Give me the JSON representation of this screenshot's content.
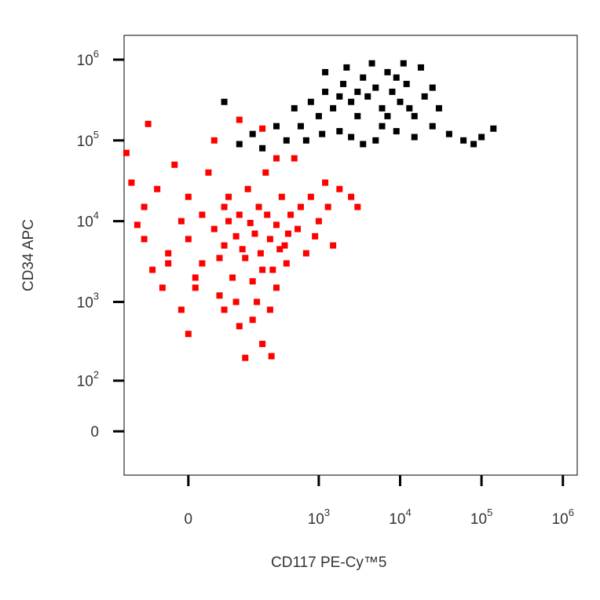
{
  "chart_data": {
    "type": "scatter",
    "scale": "biexponential",
    "xlabel": "CD117  PE-Cy™5",
    "ylabel": "CD34 APC",
    "xlim": [
      -150,
      1500000
    ],
    "ylim": [
      -80,
      2000000
    ],
    "xticks": [
      0,
      {
        "value": 1000,
        "label": "10",
        "exponent": "3"
      },
      {
        "value": 10000,
        "label": "10",
        "exponent": "4"
      },
      {
        "value": 100000,
        "label": "10",
        "exponent": "5"
      },
      {
        "value": 1000000,
        "label": "10",
        "exponent": "6"
      }
    ],
    "yticks": [
      0,
      {
        "value": 100,
        "label": "10",
        "exponent": "2"
      },
      {
        "value": 1000,
        "label": "10",
        "exponent": "3"
      },
      {
        "value": 10000,
        "label": "10",
        "exponent": "4"
      },
      {
        "value": 100000,
        "label": "10",
        "exponent": "5"
      },
      {
        "value": 1000000,
        "label": "10",
        "exponent": "6"
      }
    ],
    "series": [
      {
        "color": "#ff0000",
        "x": [
          -60,
          -30,
          0,
          20,
          40,
          60,
          80,
          100,
          120,
          -80,
          -100,
          -120,
          -140,
          10,
          50,
          90,
          150,
          200,
          250,
          300,
          180,
          130,
          70,
          30,
          -20,
          -50,
          220,
          350,
          450,
          600,
          800,
          1000,
          1300,
          1800,
          2500,
          1500,
          700,
          400,
          300,
          250,
          150,
          100,
          60,
          200,
          -10,
          -40,
          0,
          40,
          100,
          200,
          -70,
          500,
          300,
          160,
          110,
          70,
          20,
          -10,
          230,
          380,
          550,
          900,
          1200,
          3000,
          120,
          260,
          -30,
          10,
          50,
          90,
          140,
          190,
          270,
          330,
          420,
          60,
          -80,
          0,
          170
        ],
        "y": [
          2500,
          4000,
          6000,
          3000,
          8000,
          5000,
          2000,
          12000,
          3500,
          15000,
          9000,
          30000,
          70000,
          1500,
          1200,
          1000,
          1800,
          2500,
          6000,
          9000,
          15000,
          25000,
          20000,
          40000,
          50000,
          25000,
          40000,
          20000,
          12000,
          15000,
          20000,
          10000,
          15000,
          25000,
          20000,
          5000,
          4000,
          3000,
          1500,
          800,
          600,
          500,
          800,
          300,
          800,
          1500,
          20000,
          100000,
          180000,
          140000,
          160000,
          60000,
          60000,
          7000,
          4500,
          10000,
          12000,
          10000,
          12000,
          5000,
          8000,
          6500,
          30000,
          15000,
          200,
          210,
          3000,
          2000,
          3500,
          6500,
          9500,
          4000,
          2500,
          4500,
          7000,
          15000,
          6000,
          400,
          1000
        ]
      },
      {
        "color": "#000000",
        "x": [
          600,
          800,
          1000,
          1200,
          1500,
          2000,
          2500,
          3000,
          3500,
          4000,
          5000,
          6000,
          7000,
          8000,
          10000,
          12000,
          15000,
          20000,
          25000,
          30000,
          40000,
          60000,
          140000,
          80000,
          100000,
          300,
          150,
          100,
          60,
          200,
          400,
          700,
          1100,
          1800,
          2500,
          3500,
          5000,
          9000,
          15000,
          4500,
          18000,
          1200,
          2200,
          6000,
          9000,
          3000,
          7000,
          11000,
          500,
          1800,
          13000,
          25000
        ],
        "y": [
          150000,
          300000,
          200000,
          400000,
          250000,
          500000,
          300000,
          200000,
          600000,
          350000,
          450000,
          250000,
          700000,
          400000,
          300000,
          500000,
          200000,
          350000,
          150000,
          250000,
          120000,
          100000,
          140000,
          90000,
          110000,
          150000,
          120000,
          90000,
          300000,
          80000,
          100000,
          100000,
          120000,
          130000,
          110000,
          90000,
          100000,
          130000,
          110000,
          900000,
          800000,
          700000,
          800000,
          150000,
          600000,
          400000,
          200000,
          900000,
          250000,
          350000,
          250000,
          450000
        ]
      }
    ]
  }
}
